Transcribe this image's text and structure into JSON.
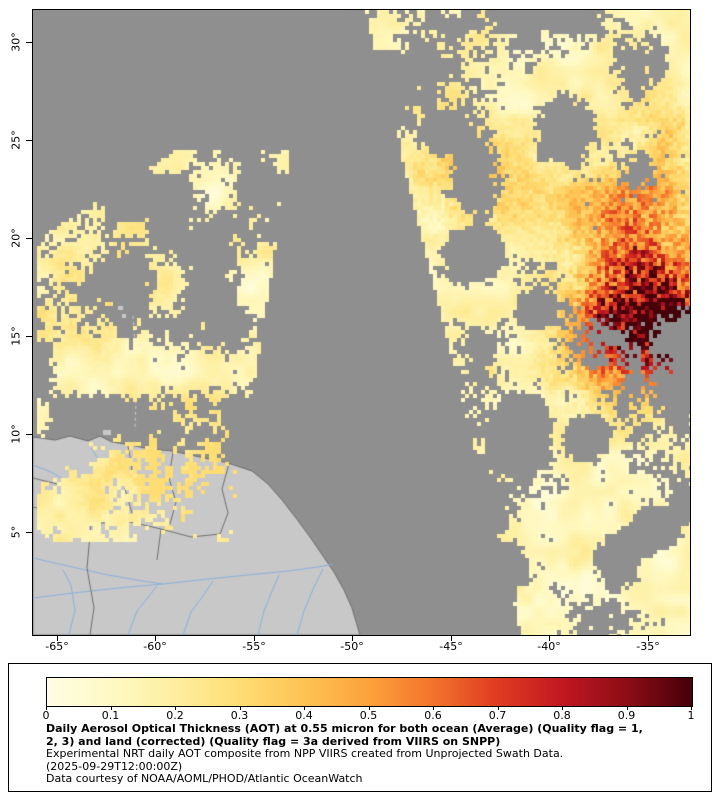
{
  "figure": {
    "y_axis_ticks": [
      "30°",
      "25°",
      "20°",
      "15°",
      "10°",
      "5°"
    ],
    "x_axis_ticks": [
      "-65°",
      "-60°",
      "-55°",
      "-50°",
      "-45°",
      "-40°",
      "-35°"
    ]
  },
  "map_colors": {
    "background": "#8f8f8f",
    "land": "#c8c8c8",
    "border": "#6f6f6f",
    "river": "#8ab0dd",
    "frame": "#000000"
  },
  "colorbar": {
    "tick_labels": [
      "0",
      "0.1",
      "0.2",
      "0.3",
      "0.4",
      "0.5",
      "0.6",
      "0.7",
      "0.8",
      "0.9",
      "1"
    ],
    "stops": [
      {
        "v": 0.0,
        "c": "#fffde6"
      },
      {
        "v": 0.1,
        "c": "#fff9c4"
      },
      {
        "v": 0.2,
        "c": "#feee9e"
      },
      {
        "v": 0.3,
        "c": "#fedd74"
      },
      {
        "v": 0.4,
        "c": "#fdc253"
      },
      {
        "v": 0.5,
        "c": "#fda13c"
      },
      {
        "v": 0.6,
        "c": "#f2722b"
      },
      {
        "v": 0.7,
        "c": "#df3b21"
      },
      {
        "v": 0.8,
        "c": "#c01721"
      },
      {
        "v": 0.9,
        "c": "#8c0d16"
      },
      {
        "v": 1.0,
        "c": "#45000a"
      }
    ]
  },
  "caption": {
    "title_lines": [
      "Daily Aerosol Optical Thickness (AOT) at 0.55 micron for both ocean (Average) (Quality flag = 1,",
      "2, 3) and land (corrected) (Quality flag = 3a derived from VIIRS on SNPP)"
    ],
    "line_experimental": "Experimental NRT daily AOT composite from NPP VIIRS created from Unprojected Swath Data.",
    "timestamp": "(2025-09-29T12:00:00Z)",
    "courtesy": "Data courtesy of NOAA/AOML/PHOD/Atlantic OceanWatch"
  },
  "chart_data": {
    "type": "heatmap",
    "title": "Daily Aerosol Optical Thickness (AOT) at 0.55 micron for both ocean (Average) (Quality flag = 1, 2, 3) and land (corrected) (Quality flag = 3a derived from VIIRS on SNPP)",
    "xlabel": "",
    "ylabel": "",
    "x_ticks_deg_lon": [
      -65,
      -60,
      -55,
      -50,
      -45,
      -40,
      -35
    ],
    "y_ticks_deg_lat": [
      30,
      25,
      20,
      15,
      10,
      5
    ],
    "x_range_deg_lon": [
      -66.7,
      -33.1
    ],
    "y_range_deg_lat": [
      0.4,
      30.6
    ],
    "colorbar_min": 0,
    "colorbar_max": 1,
    "colorbar_ticks": [
      0,
      0.1,
      0.2,
      0.3,
      0.4,
      0.5,
      0.6,
      0.7,
      0.8,
      0.9,
      1
    ],
    "no_data_color": "#8f8f8f",
    "regions": [
      {
        "desc": "western satellite swath, patchy low AOT 0.05-0.30",
        "approx_lon": [
          -66,
          -53
        ],
        "approx_lat": [
          5,
          23
        ]
      },
      {
        "desc": "eastern satellite swath, background AOT 0.05-0.30 with cloud/no-data gaps",
        "approx_lon": [
          -50,
          -33
        ],
        "approx_lat": [
          0,
          30
        ]
      },
      {
        "desc": "dust plume hotspot, AOT 0.5-1.0 deep red",
        "approx_lon": [
          -37,
          -33
        ],
        "approx_lat": [
          13,
          21
        ]
      },
      {
        "desc": "gray diagonal band between swaths = no data",
        "approx_lon": [
          -53,
          -48
        ],
        "approx_lat": [
          0,
          30
        ]
      },
      {
        "desc": "South America landmass with rivers and country borders",
        "approx_lon": [
          -66,
          -49
        ],
        "approx_lat": [
          0,
          10
        ]
      }
    ]
  }
}
